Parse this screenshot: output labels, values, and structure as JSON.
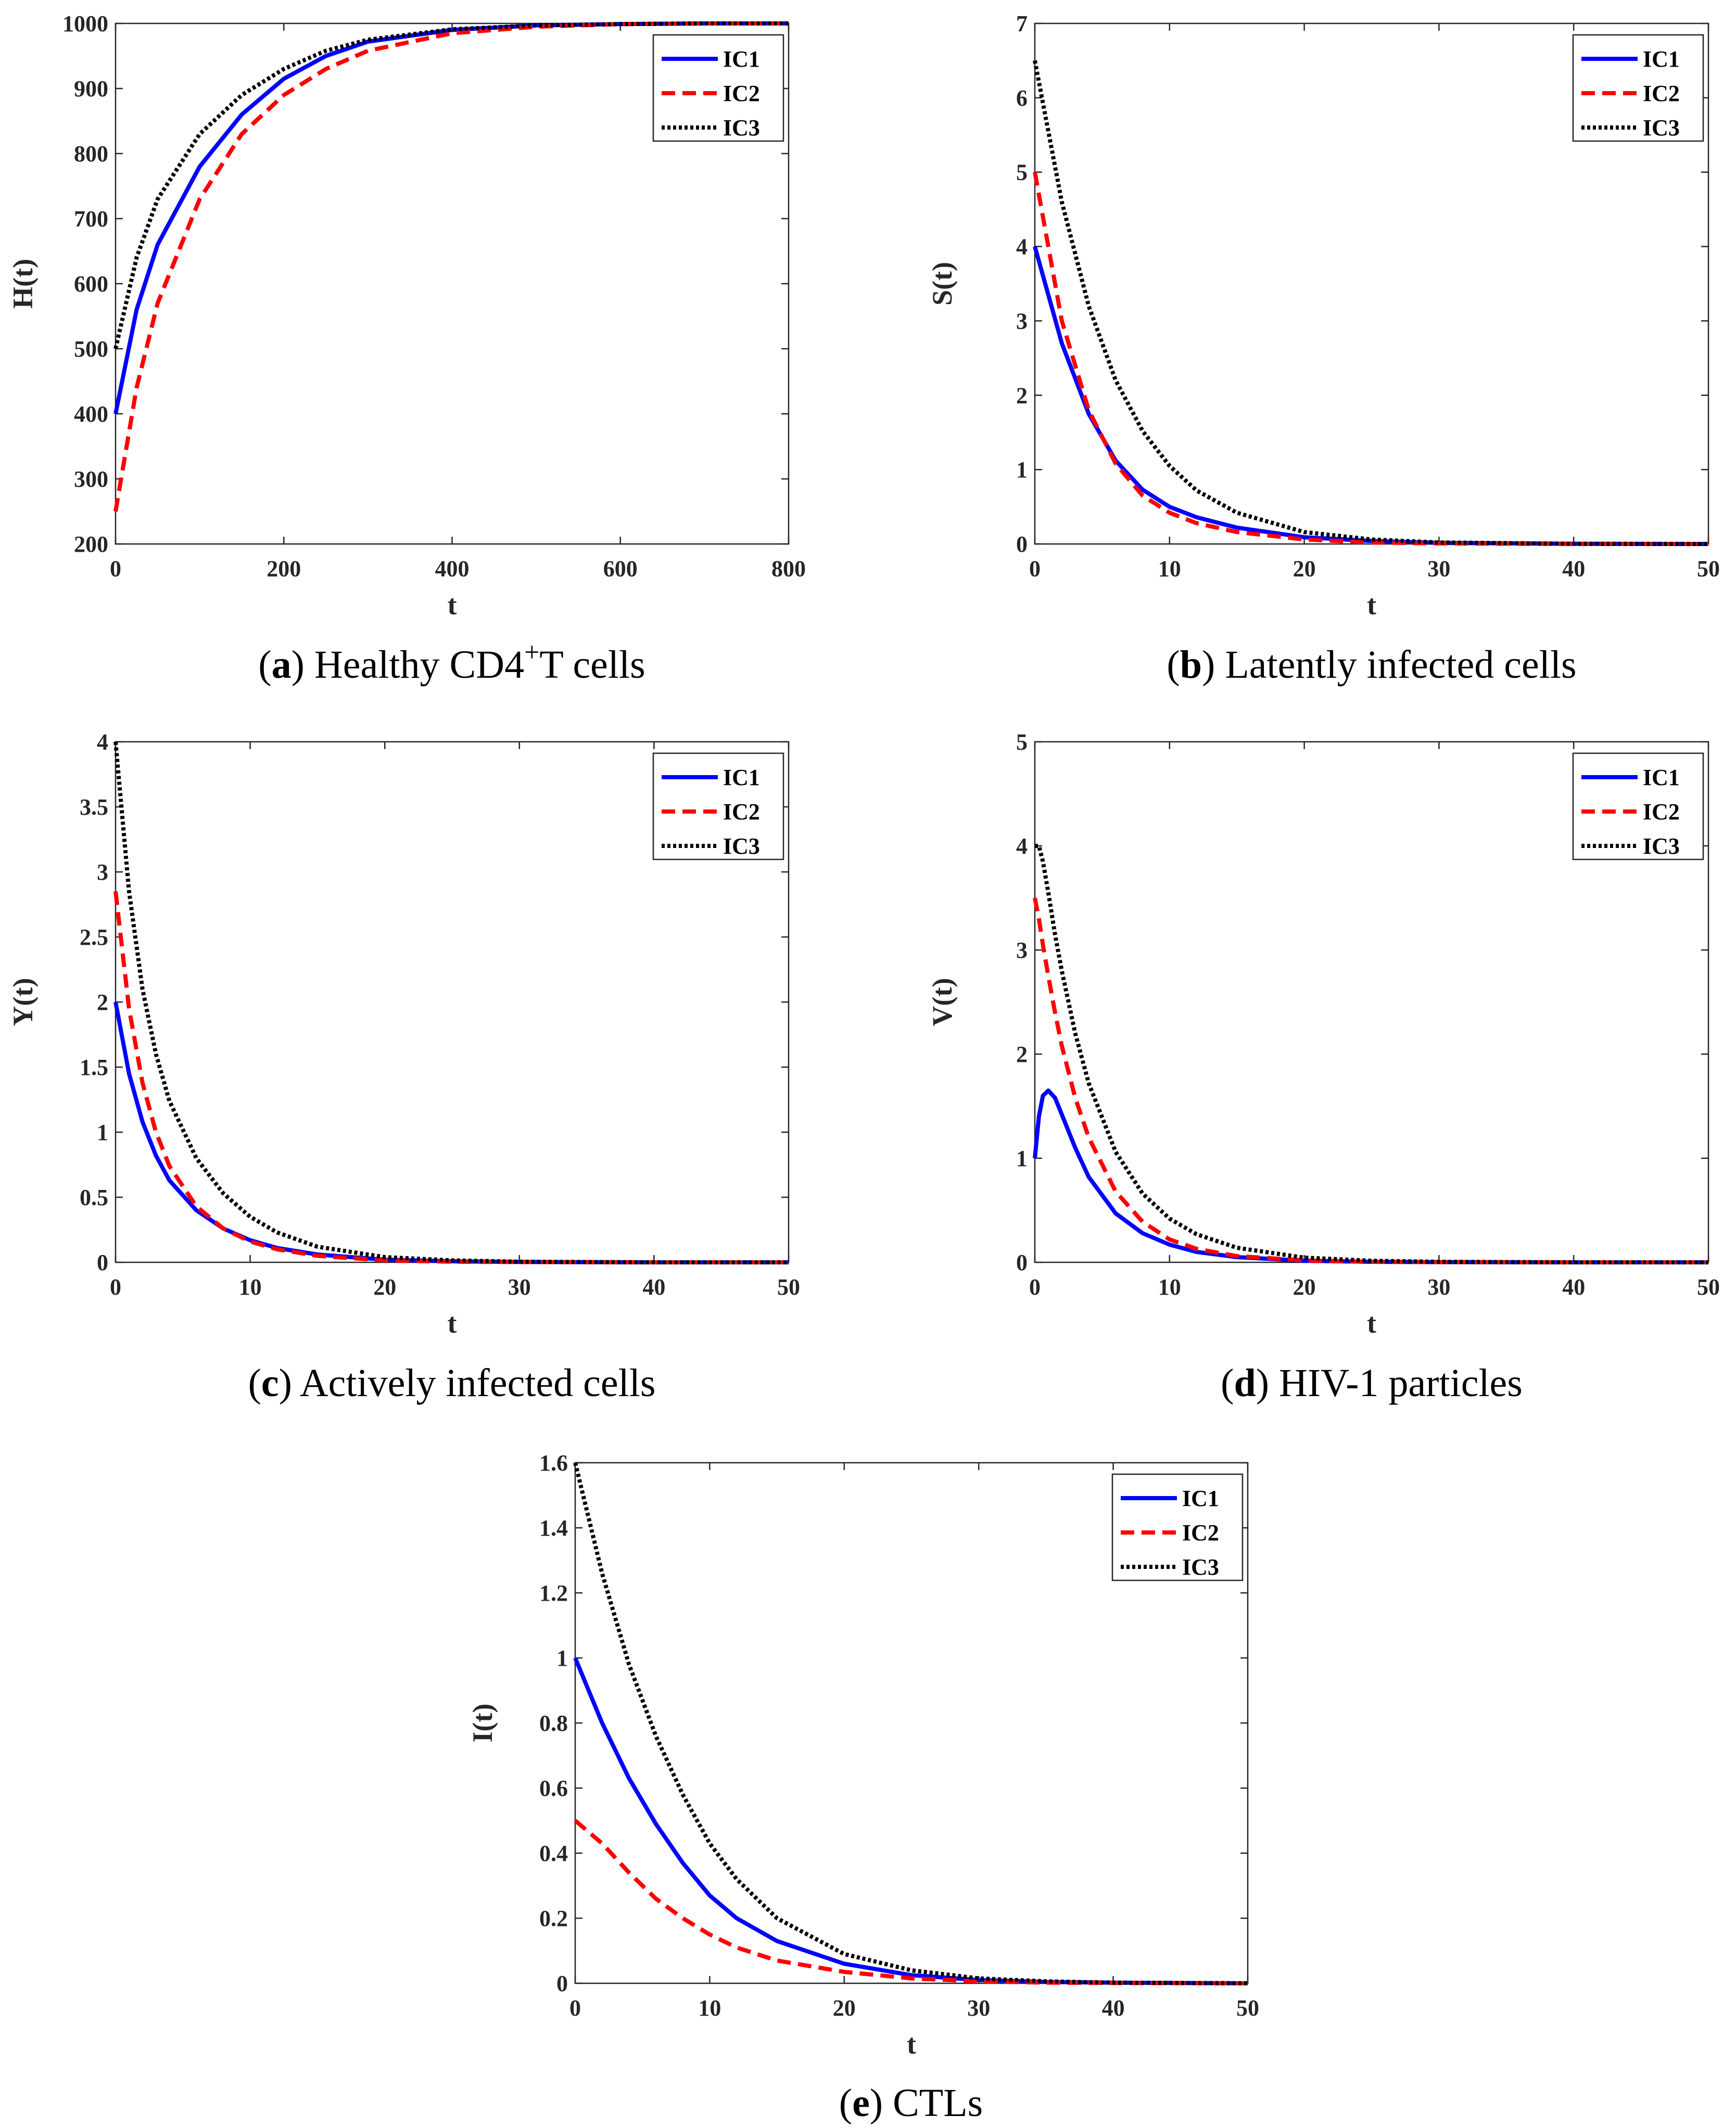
{
  "colors": {
    "IC1": "#0000ff",
    "IC2": "#ff0000",
    "IC3": "#000000",
    "axis": "#262626"
  },
  "chart_data": [
    {
      "id": "a",
      "type": "line",
      "xlabel": "t",
      "ylabel": "H(t)",
      "xlim": [
        0,
        800
      ],
      "ylim": [
        200,
        1000
      ],
      "xticks": [
        0,
        200,
        400,
        600,
        800
      ],
      "yticks": [
        200,
        300,
        400,
        500,
        600,
        700,
        800,
        900,
        1000
      ],
      "legend": [
        "IC1",
        "IC2",
        "IC3"
      ],
      "legend_position": "top-right",
      "caption": {
        "letter": "a",
        "text": " Healthy CD4",
        "sup": "+",
        "tail": "T cells"
      },
      "series": [
        {
          "name": "IC1",
          "x": [
            0,
            25,
            50,
            100,
            150,
            200,
            250,
            300,
            400,
            500,
            600,
            700,
            800
          ],
          "values": [
            400,
            560,
            660,
            780,
            860,
            915,
            950,
            972,
            990,
            997,
            999,
            1000,
            1000
          ]
        },
        {
          "name": "IC2",
          "x": [
            0,
            25,
            50,
            100,
            150,
            200,
            250,
            300,
            400,
            500,
            600,
            700,
            800
          ],
          "values": [
            250,
            440,
            570,
            730,
            830,
            890,
            930,
            958,
            985,
            995,
            999,
            1000,
            1000
          ]
        },
        {
          "name": "IC3",
          "x": [
            0,
            25,
            50,
            100,
            150,
            200,
            250,
            300,
            400,
            500,
            600,
            700,
            800
          ],
          "values": [
            500,
            640,
            730,
            830,
            890,
            930,
            958,
            975,
            991,
            997,
            999,
            1000,
            1000
          ]
        }
      ]
    },
    {
      "id": "b",
      "type": "line",
      "xlabel": "t",
      "ylabel": "S(t)",
      "xlim": [
        0,
        50
      ],
      "ylim": [
        0,
        7
      ],
      "xticks": [
        0,
        10,
        20,
        30,
        40,
        50
      ],
      "yticks": [
        0,
        1,
        2,
        3,
        4,
        5,
        6,
        7
      ],
      "legend": [
        "IC1",
        "IC2",
        "IC3"
      ],
      "legend_position": "top-right",
      "caption": {
        "letter": "b",
        "text": " Latently infected cells",
        "sup": "",
        "tail": ""
      },
      "series": [
        {
          "name": "IC1",
          "x": [
            0,
            2,
            4,
            6,
            8,
            10,
            12,
            15,
            20,
            25,
            30,
            40,
            50
          ],
          "values": [
            4.0,
            2.7,
            1.75,
            1.12,
            0.73,
            0.5,
            0.36,
            0.22,
            0.09,
            0.04,
            0.015,
            0.003,
            0.0
          ]
        },
        {
          "name": "IC2",
          "x": [
            0,
            2,
            4,
            6,
            8,
            10,
            12,
            15,
            20,
            25,
            30,
            40,
            50
          ],
          "values": [
            5.0,
            3.0,
            1.8,
            1.08,
            0.65,
            0.42,
            0.28,
            0.16,
            0.06,
            0.02,
            0.008,
            0.001,
            0.0
          ]
        },
        {
          "name": "IC3",
          "x": [
            0,
            2,
            4,
            6,
            8,
            10,
            12,
            15,
            20,
            25,
            30,
            40,
            50
          ],
          "values": [
            6.5,
            4.6,
            3.2,
            2.2,
            1.52,
            1.05,
            0.72,
            0.42,
            0.16,
            0.06,
            0.02,
            0.003,
            0.0
          ]
        }
      ]
    },
    {
      "id": "c",
      "type": "line",
      "xlabel": "t",
      "ylabel": "Y(t)",
      "xlim": [
        0,
        50
      ],
      "ylim": [
        0,
        4
      ],
      "xticks": [
        0,
        10,
        20,
        30,
        40,
        50
      ],
      "yticks": [
        0,
        0.5,
        1,
        1.5,
        2,
        2.5,
        3,
        3.5,
        4
      ],
      "legend": [
        "IC1",
        "IC2",
        "IC3"
      ],
      "legend_position": "top-right",
      "caption": {
        "letter": "c",
        "text": " Actively infected cells",
        "sup": "",
        "tail": ""
      },
      "series": [
        {
          "name": "IC1",
          "x": [
            0,
            1,
            2,
            3,
            4,
            6,
            8,
            10,
            12,
            15,
            20,
            25,
            30,
            40,
            50
          ],
          "values": [
            2.0,
            1.45,
            1.08,
            0.82,
            0.63,
            0.4,
            0.26,
            0.17,
            0.11,
            0.06,
            0.02,
            0.008,
            0.003,
            0.0,
            0.0
          ]
        },
        {
          "name": "IC2",
          "x": [
            0,
            1,
            2,
            3,
            4,
            6,
            8,
            10,
            12,
            15,
            20,
            25,
            30,
            40,
            50
          ],
          "values": [
            2.85,
            1.95,
            1.38,
            1.0,
            0.74,
            0.43,
            0.26,
            0.16,
            0.1,
            0.05,
            0.015,
            0.005,
            0.002,
            0.0,
            0.0
          ]
        },
        {
          "name": "IC3",
          "x": [
            0,
            1,
            2,
            3,
            4,
            6,
            8,
            10,
            12,
            15,
            20,
            25,
            30,
            40,
            50
          ],
          "values": [
            4.0,
            2.85,
            2.1,
            1.6,
            1.24,
            0.8,
            0.53,
            0.35,
            0.23,
            0.12,
            0.04,
            0.015,
            0.005,
            0.0,
            0.0
          ]
        }
      ]
    },
    {
      "id": "d",
      "type": "line",
      "xlabel": "t",
      "ylabel": "V(t)",
      "xlim": [
        0,
        50
      ],
      "ylim": [
        0,
        5
      ],
      "xticks": [
        0,
        10,
        20,
        30,
        40,
        50
      ],
      "yticks": [
        0,
        1,
        2,
        3,
        4,
        5
      ],
      "legend": [
        "IC1",
        "IC2",
        "IC3"
      ],
      "legend_position": "top-right",
      "caption": {
        "letter": "d",
        "text": " HIV-1 particles",
        "sup": "",
        "tail": ""
      },
      "series": [
        {
          "name": "IC1",
          "x": [
            0,
            0.3,
            0.6,
            1,
            1.5,
            2,
            3,
            4,
            6,
            8,
            10,
            12,
            15,
            20,
            25,
            30,
            40,
            50
          ],
          "values": [
            1.0,
            1.4,
            1.6,
            1.65,
            1.58,
            1.42,
            1.1,
            0.82,
            0.47,
            0.28,
            0.17,
            0.1,
            0.05,
            0.015,
            0.005,
            0.002,
            0.0,
            0.0
          ]
        },
        {
          "name": "IC2",
          "x": [
            0,
            0.3,
            0.6,
            1,
            1.5,
            2,
            3,
            4,
            6,
            8,
            10,
            12,
            15,
            20,
            25,
            30,
            40,
            50
          ],
          "values": [
            3.5,
            3.3,
            3.05,
            2.75,
            2.4,
            2.08,
            1.58,
            1.2,
            0.68,
            0.39,
            0.22,
            0.13,
            0.06,
            0.018,
            0.005,
            0.002,
            0.0,
            0.0
          ]
        },
        {
          "name": "IC3",
          "x": [
            0,
            0.3,
            0.6,
            1,
            1.5,
            2,
            3,
            4,
            6,
            8,
            10,
            12,
            15,
            20,
            25,
            30,
            40,
            50
          ],
          "values": [
            4.0,
            4.0,
            3.85,
            3.55,
            3.15,
            2.8,
            2.2,
            1.72,
            1.06,
            0.66,
            0.42,
            0.27,
            0.14,
            0.045,
            0.015,
            0.005,
            0.0,
            0.0
          ]
        }
      ]
    },
    {
      "id": "e",
      "type": "line",
      "xlabel": "t",
      "ylabel": "I(t)",
      "xlim": [
        0,
        50
      ],
      "ylim": [
        0,
        1.6
      ],
      "xticks": [
        0,
        10,
        20,
        30,
        40,
        50
      ],
      "yticks": [
        0,
        0.2,
        0.4,
        0.6,
        0.8,
        1,
        1.2,
        1.4,
        1.6
      ],
      "legend": [
        "IC1",
        "IC2",
        "IC3"
      ],
      "legend_position": "top-right",
      "caption": {
        "letter": "e",
        "text": " CTLs",
        "sup": "",
        "tail": ""
      },
      "series": [
        {
          "name": "IC1",
          "x": [
            0,
            2,
            4,
            6,
            8,
            10,
            12,
            15,
            20,
            25,
            30,
            35,
            40,
            50
          ],
          "values": [
            1.0,
            0.8,
            0.63,
            0.49,
            0.37,
            0.27,
            0.2,
            0.13,
            0.06,
            0.025,
            0.01,
            0.004,
            0.002,
            0.0
          ]
        },
        {
          "name": "IC2",
          "x": [
            0,
            2,
            4,
            6,
            8,
            10,
            12,
            15,
            20,
            25,
            30,
            35,
            40,
            50
          ],
          "values": [
            0.5,
            0.43,
            0.34,
            0.26,
            0.2,
            0.15,
            0.11,
            0.07,
            0.035,
            0.015,
            0.006,
            0.002,
            0.001,
            0.0
          ]
        },
        {
          "name": "IC3",
          "x": [
            0,
            2,
            4,
            6,
            8,
            10,
            12,
            15,
            20,
            25,
            30,
            35,
            40,
            50
          ],
          "values": [
            1.6,
            1.26,
            0.98,
            0.76,
            0.58,
            0.43,
            0.32,
            0.2,
            0.09,
            0.04,
            0.015,
            0.006,
            0.002,
            0.0
          ]
        }
      ]
    }
  ]
}
